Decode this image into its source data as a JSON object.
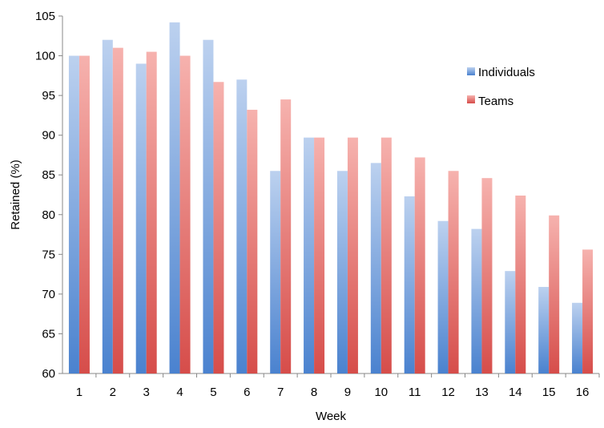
{
  "chart_data": {
    "type": "bar",
    "title": "",
    "xlabel": "Week",
    "ylabel": "Retained (%)",
    "ylim": [
      60,
      105
    ],
    "y_ticks": [
      "60",
      "65",
      "70",
      "75",
      "80",
      "85",
      "90",
      "95",
      "100",
      "105"
    ],
    "categories": [
      "1",
      "2",
      "3",
      "4",
      "5",
      "6",
      "7",
      "8",
      "9",
      "10",
      "11",
      "12",
      "13",
      "14",
      "15",
      "16"
    ],
    "series": [
      {
        "name": "Individuals",
        "color": "#7aa6dc",
        "values": [
          100,
          102,
          99,
          104.2,
          102,
          97,
          85.5,
          89.7,
          85.5,
          86.5,
          82.3,
          79.2,
          78.2,
          72.9,
          70.9,
          68.9
        ]
      },
      {
        "name": "Teams",
        "color": "#e26a6a",
        "values": [
          100,
          101,
          100.5,
          100,
          96.7,
          93.2,
          94.5,
          89.7,
          89.7,
          89.7,
          87.2,
          85.5,
          84.6,
          82.4,
          79.9,
          75.6
        ]
      }
    ],
    "legend_position": "right",
    "grid": false
  }
}
